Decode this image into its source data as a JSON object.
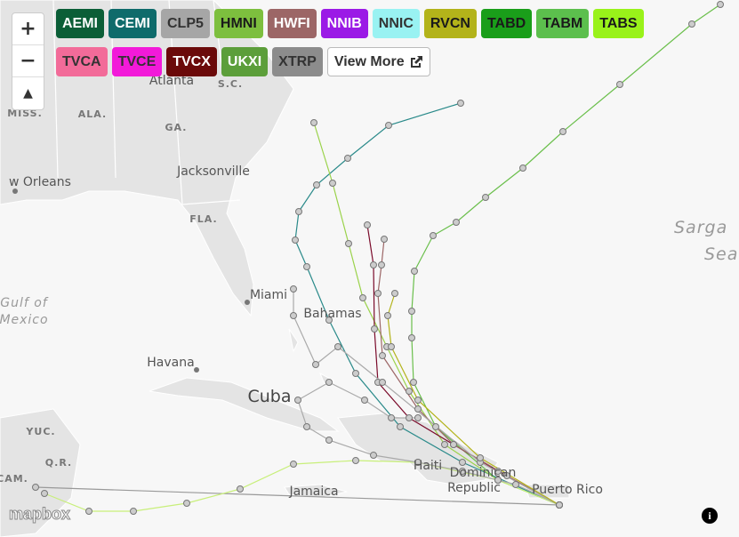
{
  "controls": {
    "zoom_in": "+",
    "zoom_out": "−",
    "compass": "▲"
  },
  "models": [
    {
      "label": "AEMI",
      "color": "#0b5e37",
      "text_color": "#ffffff"
    },
    {
      "label": "CEMI",
      "color": "#0f6b6b",
      "text_color": "#ffffff"
    },
    {
      "label": "CLP5",
      "color": "#a6a6a6",
      "text_color": "#333333"
    },
    {
      "label": "HMNI",
      "color": "#7dbf3e",
      "text_color": "#1a1a1a"
    },
    {
      "label": "HWFI",
      "color": "#9c6666",
      "text_color": "#ffffff"
    },
    {
      "label": "NNIB",
      "color": "#9b1ae6",
      "text_color": "#ffffff"
    },
    {
      "label": "NNIC",
      "color": "#99f2f2",
      "text_color": "#333333"
    },
    {
      "label": "RVCN",
      "color": "#b3b31a",
      "text_color": "#1a1a1a"
    },
    {
      "label": "TABD",
      "color": "#1a9e1a",
      "text_color": "#1a1a1a"
    },
    {
      "label": "TABM",
      "color": "#5cbf4d",
      "text_color": "#1a1a1a"
    },
    {
      "label": "TABS",
      "color": "#99f21a",
      "text_color": "#1a1a1a"
    },
    {
      "label": "TVCA",
      "color": "#f26b99",
      "text_color": "#333333"
    },
    {
      "label": "TVCE",
      "color": "#f21ad9",
      "text_color": "#333333"
    },
    {
      "label": "TVCX",
      "color": "#6b0a0a",
      "text_color": "#ffffff"
    },
    {
      "label": "UKXI",
      "color": "#5c9e3a",
      "text_color": "#ffffff"
    },
    {
      "label": "XTRP",
      "color": "#8c8c8c",
      "text_color": "#333333"
    }
  ],
  "view_more": "View More",
  "places": {
    "sc": "S.C.",
    "atlanta": "Atlanta",
    "miss": "MISS.",
    "ala": "ALA.",
    "ga": "GA.",
    "jacksonville": "Jacksonville",
    "new_orleans": "w Orleans",
    "fla": "FLA.",
    "miami": "Miami",
    "bahamas": "Bahamas",
    "havana": "Havana",
    "cuba": "Cuba",
    "gulf_1": "Gulf of",
    "gulf_2": "Mexico",
    "sargasso_1": "Sarga",
    "sargasso_2": "Sea",
    "yuc": "YUC.",
    "qr": "Q.R.",
    "cam": "CAM.",
    "jamaica": "Jamaica",
    "haiti": "Haiti",
    "dominican_1": "Dominican",
    "dominican_2": "Republic",
    "puerto_rico": "Puerto Rico"
  },
  "attribution": "mapbox",
  "info": "i"
}
